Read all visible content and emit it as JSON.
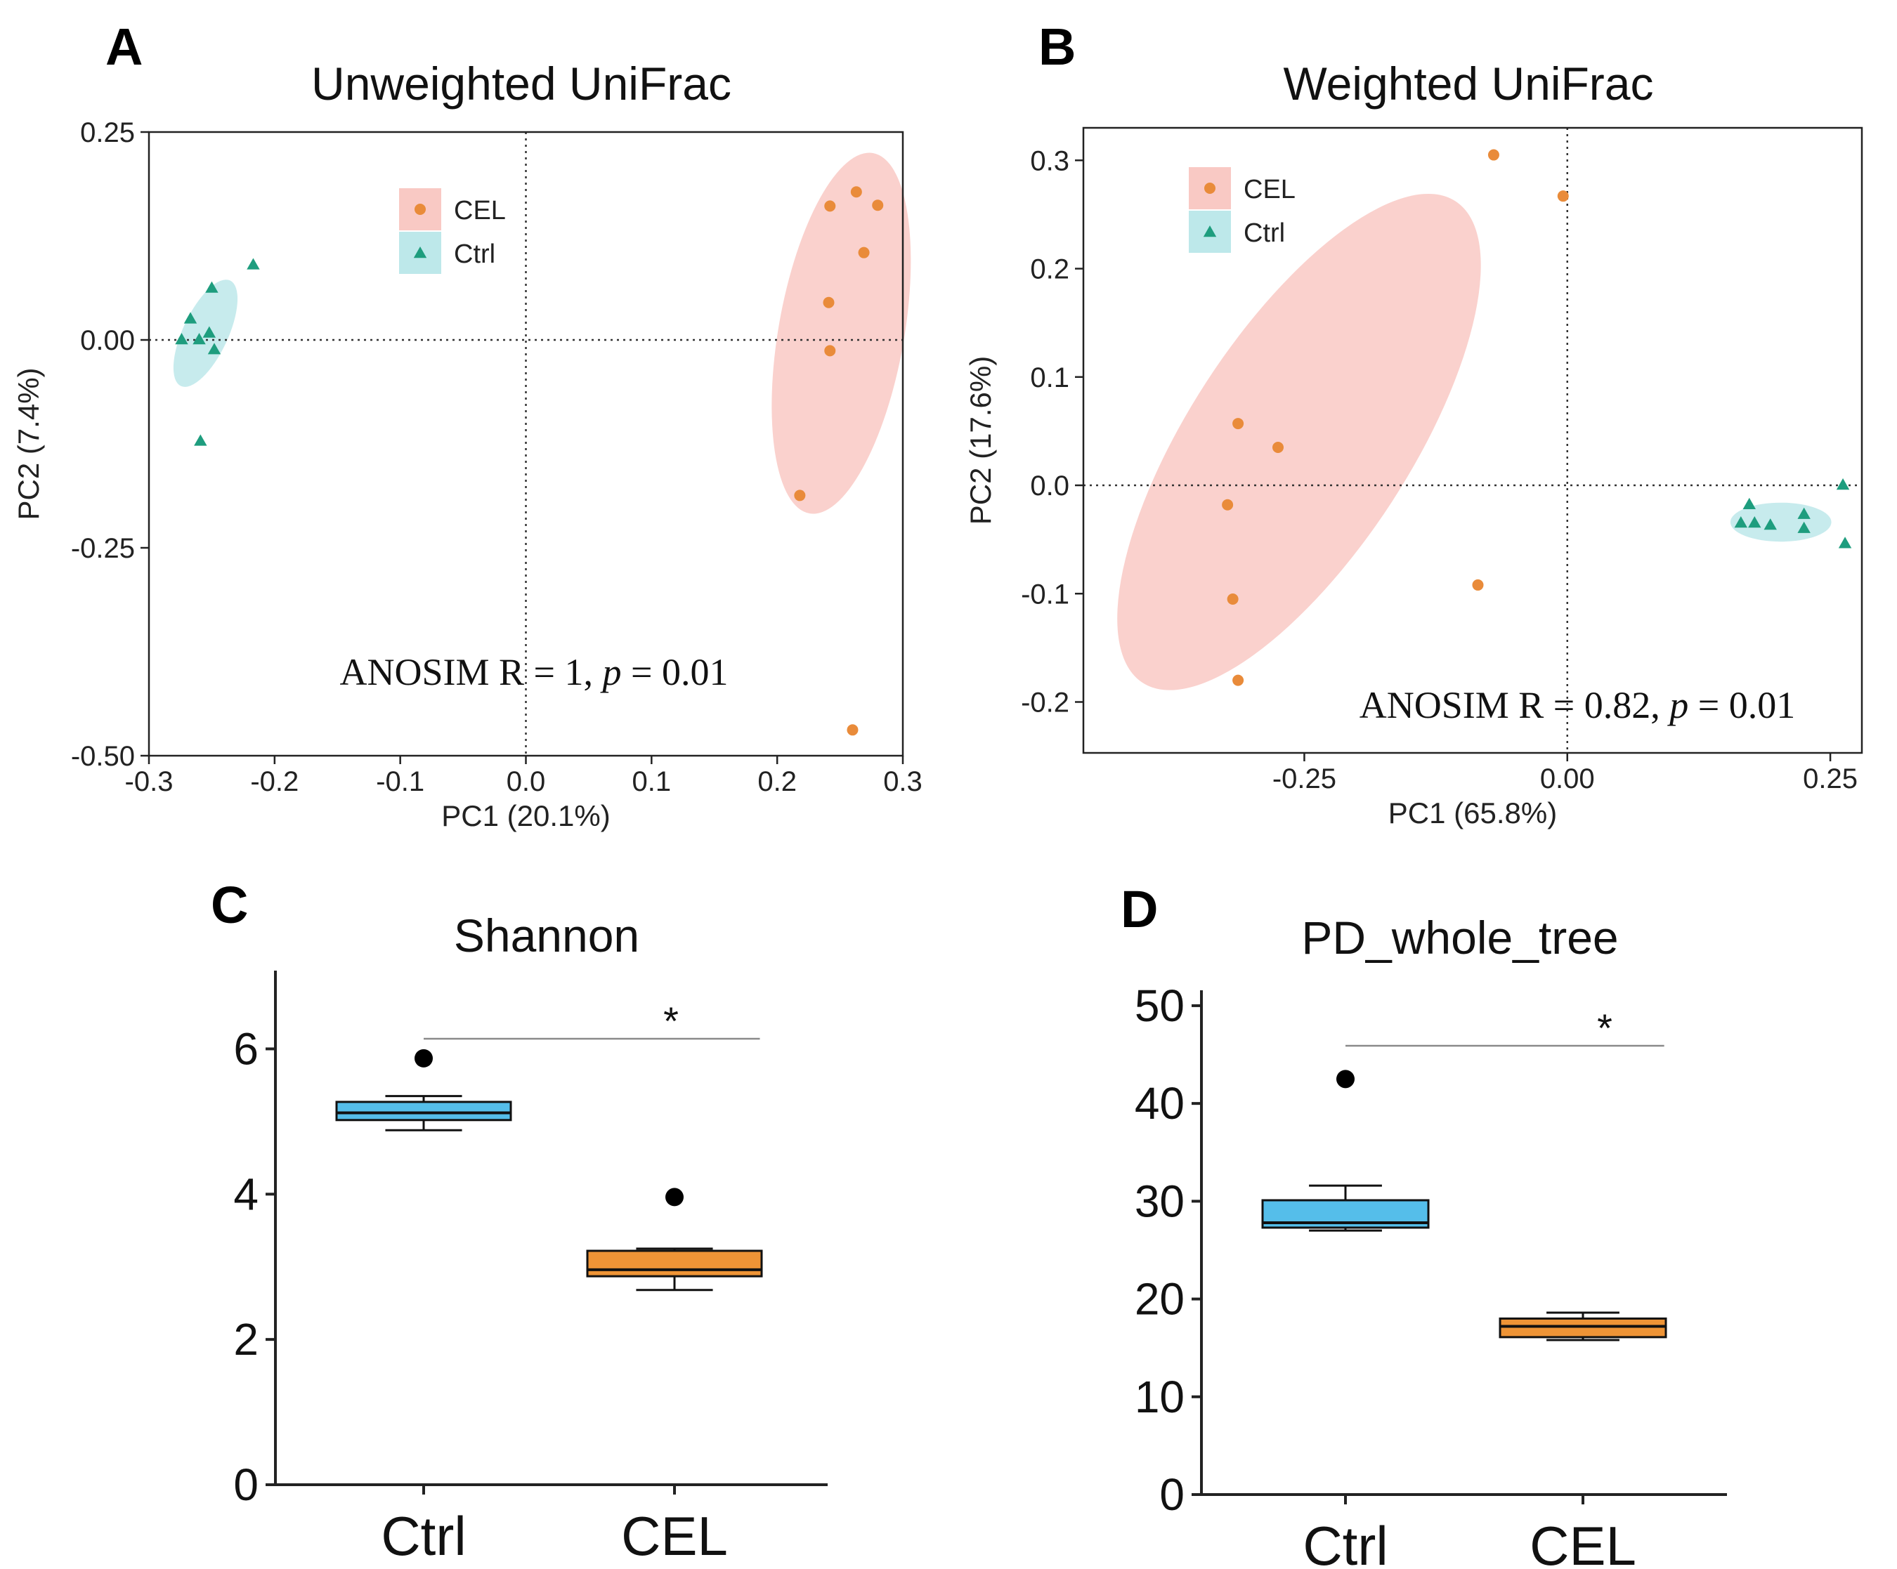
{
  "chart_data": [
    {
      "panel": "A",
      "type": "scatter",
      "title": "Unweighted UniFrac",
      "xlabel": "PC1 (20.1%)",
      "ylabel": "PC2 (7.4%)",
      "xlim": [
        -0.3,
        0.3
      ],
      "ylim": [
        -0.5,
        0.25
      ],
      "xticks": [
        "-0.3",
        "-0.2",
        "-0.1",
        "0.0",
        "0.1",
        "0.2",
        "0.3"
      ],
      "yticks": [
        "0.25",
        "0.00",
        "-0.25",
        "-0.50"
      ],
      "legend": [
        "CEL",
        "Ctrl"
      ],
      "legend_position": "top-center",
      "annotation": {
        "prefix": "ANOSIM R = 1,  ",
        "p_symbol": "p",
        "suffix": " = 0.01"
      },
      "series": [
        {
          "name": "CEL",
          "points": [
            [
              0.263,
              0.178
            ],
            [
              0.28,
              0.162
            ],
            [
              0.242,
              0.161
            ],
            [
              0.269,
              0.105
            ],
            [
              0.241,
              0.045
            ],
            [
              0.242,
              -0.013
            ],
            [
              0.218,
              -0.187
            ],
            [
              0.26,
              -0.469
            ]
          ]
        },
        {
          "name": "Ctrl",
          "points": [
            [
              -0.25,
              0.062
            ],
            [
              -0.217,
              0.09
            ],
            [
              -0.267,
              0.025
            ],
            [
              -0.252,
              0.008
            ],
            [
              -0.274,
              0.0
            ],
            [
              -0.26,
              0.0
            ],
            [
              -0.248,
              -0.012
            ],
            [
              -0.259,
              -0.122
            ]
          ]
        }
      ],
      "ellipses": [
        {
          "group": "CEL",
          "center": [
            0.251,
            0.008
          ],
          "semi_x": 0.05,
          "semi_y": 0.22,
          "angle_deg": 10
        },
        {
          "group": "Ctrl",
          "center": [
            -0.255,
            0.008
          ],
          "semi_x": 0.018,
          "semi_y": 0.07,
          "angle_deg": 25
        }
      ]
    },
    {
      "panel": "B",
      "type": "scatter",
      "title": "Weighted UniFrac",
      "xlabel": "PC1 (65.8%)",
      "ylabel": "PC2 (17.6%)",
      "xlim": [
        -0.46,
        0.28
      ],
      "ylim": [
        -0.247,
        0.33
      ],
      "xtick_values": [
        -0.25,
        0,
        0.25
      ],
      "xticks": [
        "-0.25",
        "0.00",
        "0.25"
      ],
      "ytick_values": [
        0.3,
        0.2,
        0.1,
        0,
        -0.1,
        -0.2
      ],
      "yticks": [
        "0.3",
        "0.2",
        "0.1",
        "0.0",
        "-0.1",
        "-0.2"
      ],
      "legend": [
        "CEL",
        "Ctrl"
      ],
      "legend_position": "top-left",
      "annotation": {
        "prefix": "ANOSIM R = 0.82,  ",
        "p_symbol": "p",
        "suffix": " = 0.01"
      },
      "series": [
        {
          "name": "CEL",
          "points": [
            [
              -0.07,
              0.305
            ],
            [
              -0.004,
              0.267
            ],
            [
              -0.313,
              0.057
            ],
            [
              -0.275,
              0.035
            ],
            [
              -0.323,
              -0.018
            ],
            [
              -0.318,
              -0.105
            ],
            [
              -0.085,
              -0.092
            ],
            [
              -0.313,
              -0.18
            ]
          ]
        },
        {
          "name": "Ctrl",
          "points": [
            [
              0.173,
              -0.018
            ],
            [
              0.165,
              -0.035
            ],
            [
              0.178,
              -0.035
            ],
            [
              0.193,
              -0.037
            ],
            [
              0.225,
              -0.027
            ],
            [
              0.225,
              -0.04
            ],
            [
              0.262,
              0.0
            ],
            [
              0.264,
              -0.054
            ]
          ]
        }
      ],
      "ellipses": [
        {
          "group": "CEL",
          "center": [
            -0.255,
            0.04
          ],
          "semi_x": 0.105,
          "semi_y": 0.265,
          "angle_deg": 33
        },
        {
          "group": "Ctrl",
          "center": [
            0.203,
            -0.034
          ],
          "semi_x": 0.048,
          "semi_y": 0.018,
          "angle_deg": 0
        }
      ]
    },
    {
      "panel": "C",
      "type": "box",
      "title": "Shannon",
      "categories": [
        "Ctrl",
        "CEL"
      ],
      "ylim": [
        0,
        7
      ],
      "yticks": [
        0,
        2,
        4,
        6
      ],
      "boxes": [
        {
          "name": "Ctrl",
          "whisker_low": 4.88,
          "q1": 5.02,
          "median": 5.12,
          "q3": 5.27,
          "whisker_high": 5.35,
          "outliers": [
            5.87
          ]
        },
        {
          "name": "CEL",
          "whisker_low": 2.68,
          "q1": 2.87,
          "median": 2.96,
          "q3": 3.22,
          "whisker_high": 3.25,
          "outliers": [
            3.96
          ]
        }
      ],
      "significance": "*"
    },
    {
      "panel": "D",
      "type": "box",
      "title": "PD_whole_tree",
      "categories": [
        "Ctrl",
        "CEL"
      ],
      "ylim": [
        0,
        51
      ],
      "yticks": [
        0,
        10,
        20,
        30,
        40,
        50
      ],
      "boxes": [
        {
          "name": "Ctrl",
          "whisker_low": 27.0,
          "q1": 27.3,
          "median": 27.8,
          "q3": 30.1,
          "whisker_high": 31.6,
          "outliers": [
            42.5
          ]
        },
        {
          "name": "CEL",
          "whisker_low": 15.8,
          "q1": 16.1,
          "median": 17.2,
          "q3": 18.0,
          "whisker_high": 18.6,
          "outliers": []
        }
      ],
      "significance": "*"
    }
  ],
  "colors": {
    "cel_point": "#E98B3A",
    "cel_ellipse": "#F9C9C4",
    "ctrl_point": "#1E9D7E",
    "ctrl_ellipse": "#BDE8EA",
    "ctrl_box": "#55BEEA",
    "cel_box": "#EE9436",
    "axis": "#222222",
    "sig_line": "#8A8A8A"
  }
}
